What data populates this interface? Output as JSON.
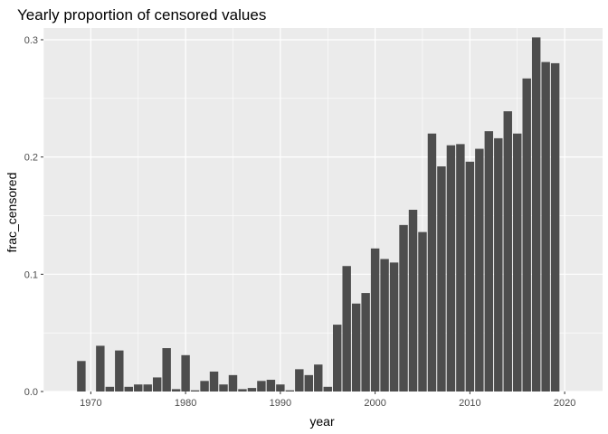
{
  "chart_data": {
    "type": "bar",
    "title": "Yearly proportion of censored values",
    "xlabel": "year",
    "ylabel": "frac_censored",
    "xlim": [
      1965,
      2024
    ],
    "ylim": [
      0,
      0.31
    ],
    "x_ticks": [
      "1970",
      "1980",
      "1990",
      "2000",
      "2010",
      "2020"
    ],
    "y_ticks": [
      "0.0",
      "0.1",
      "0.2",
      "0.3"
    ],
    "grid": true,
    "panel_color": "#ebebeb",
    "bar_color": "#4d4d4d",
    "series": [
      {
        "x": [
          1969,
          1970,
          1971,
          1972,
          1973,
          1974,
          1975,
          1976,
          1977,
          1978,
          1979,
          1980,
          1981,
          1982,
          1983,
          1984,
          1985,
          1986,
          1987,
          1988,
          1989,
          1990,
          1991,
          1992,
          1993,
          1994,
          1995,
          1996,
          1997,
          1998,
          1999,
          2000,
          2001,
          2002,
          2003,
          2004,
          2005,
          2006,
          2007,
          2008,
          2009,
          2010,
          2011,
          2012,
          2013,
          2014,
          2015,
          2016,
          2017,
          2018,
          2019,
          2020
        ],
        "values": [
          0.026,
          0,
          0.039,
          0.004,
          0.035,
          0.004,
          0.006,
          0.006,
          0.012,
          0.037,
          0.002,
          0.031,
          0.001,
          0.009,
          0.017,
          0.006,
          0.014,
          0.002,
          0.003,
          0.009,
          0.01,
          0.006,
          0.001,
          0.019,
          0.014,
          0.023,
          0.004,
          0.057,
          0.107,
          0.075,
          0.084,
          0.122,
          0.113,
          0.11,
          0.142,
          0.155,
          0.136,
          0.22,
          0.192,
          0.21,
          0.211,
          0.196,
          0.207,
          0.222,
          0.216,
          0.239,
          0.22,
          0.267,
          0.302,
          0.281,
          0.28,
          0
        ]
      }
    ]
  }
}
